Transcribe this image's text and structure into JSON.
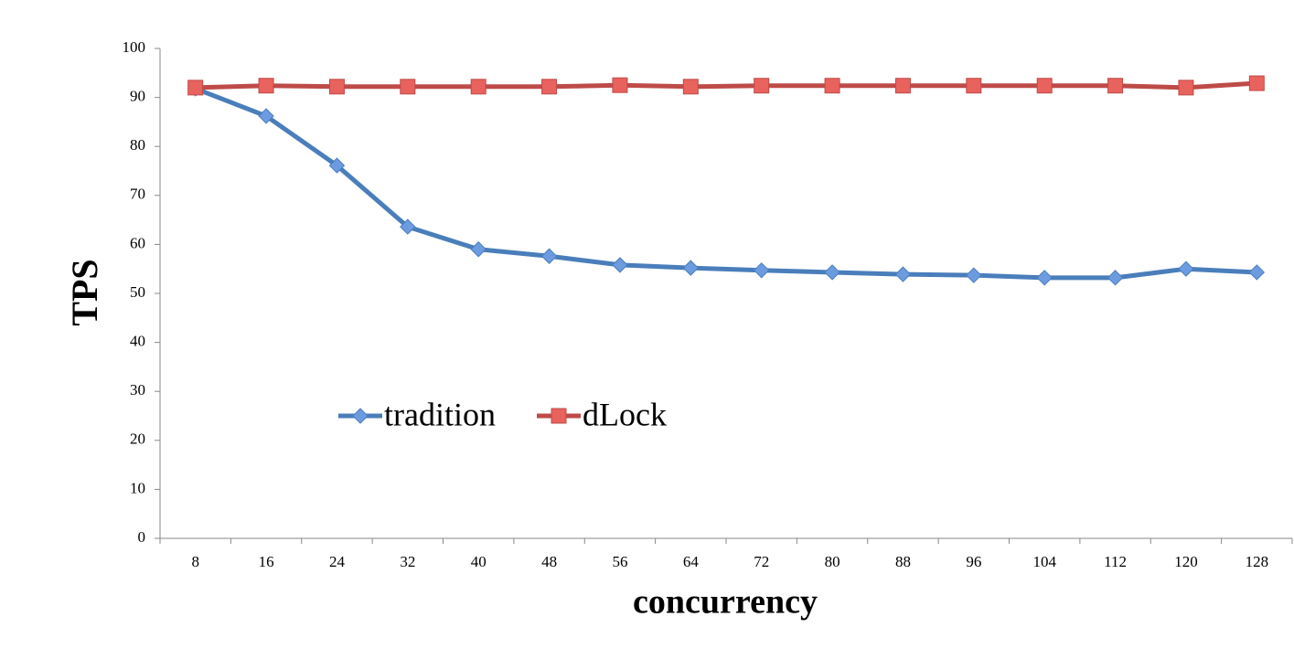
{
  "chart_data": {
    "type": "line",
    "x_label": "concurrency",
    "y_label": "TPS",
    "categories": [
      "8",
      "16",
      "24",
      "32",
      "40",
      "48",
      "56",
      "64",
      "72",
      "80",
      "88",
      "96",
      "104",
      "112",
      "120",
      "128"
    ],
    "series": [
      {
        "name": "tradition",
        "color": "#4a7ebb",
        "marker_color": "#6d9be0",
        "marker": "diamond",
        "values": [
          91.8,
          86.2,
          76.1,
          63.6,
          59.0,
          57.6,
          55.8,
          55.2,
          54.7,
          54.3,
          53.9,
          53.7,
          53.2,
          53.2,
          55.0,
          54.3
        ]
      },
      {
        "name": "dLock",
        "color": "#be4b48",
        "marker_color": "#e8625e",
        "marker": "square",
        "values": [
          92.0,
          92.4,
          92.2,
          92.2,
          92.2,
          92.2,
          92.5,
          92.2,
          92.4,
          92.4,
          92.4,
          92.4,
          92.4,
          92.4,
          92.0,
          92.9
        ]
      }
    ],
    "ylim": [
      0,
      100
    ],
    "yticks": [
      0,
      10,
      20,
      30,
      40,
      50,
      60,
      70,
      80,
      90,
      100
    ],
    "grid": false
  }
}
